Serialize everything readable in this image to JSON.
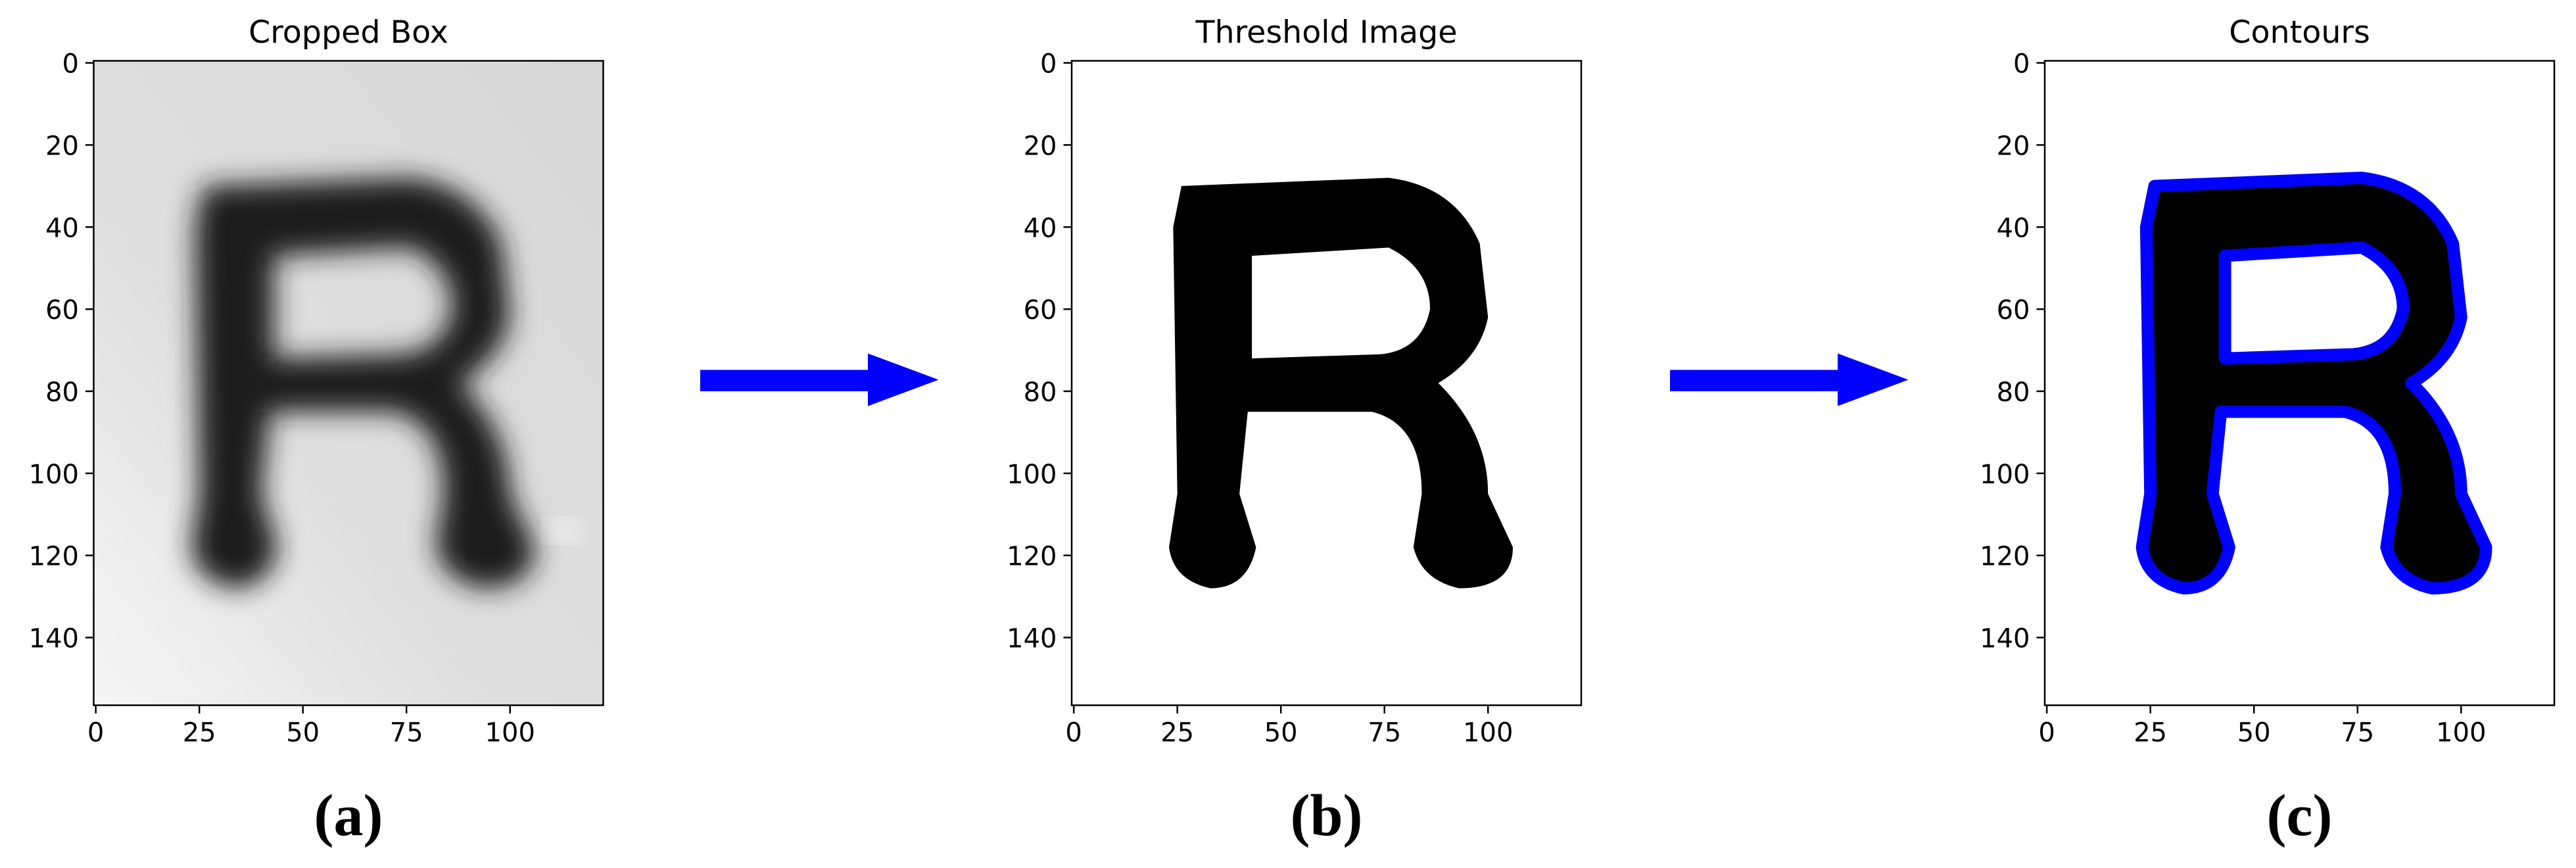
{
  "panels": [
    {
      "title": "Cropped Box",
      "caption": "(a)",
      "xlim": [
        -0.5,
        122.5
      ],
      "ylim": [
        156.5,
        -0.5
      ],
      "xticks": [
        0,
        25,
        50,
        75,
        100
      ],
      "yticks": [
        0,
        20,
        40,
        60,
        80,
        100,
        120,
        140
      ]
    },
    {
      "title": "Threshold Image",
      "caption": "(b)",
      "xlim": [
        -0.5,
        122.5
      ],
      "ylim": [
        156.5,
        -0.5
      ],
      "xticks": [
        0,
        25,
        50,
        75,
        100
      ],
      "yticks": [
        0,
        20,
        40,
        60,
        80,
        100,
        120,
        140
      ]
    },
    {
      "title": "Contours",
      "caption": "(c)",
      "xlim": [
        -0.5,
        122.5
      ],
      "ylim": [
        156.5,
        -0.5
      ],
      "xticks": [
        0,
        25,
        50,
        75,
        100
      ],
      "yticks": [
        0,
        20,
        40,
        60,
        80,
        100,
        120,
        140
      ]
    }
  ]
}
